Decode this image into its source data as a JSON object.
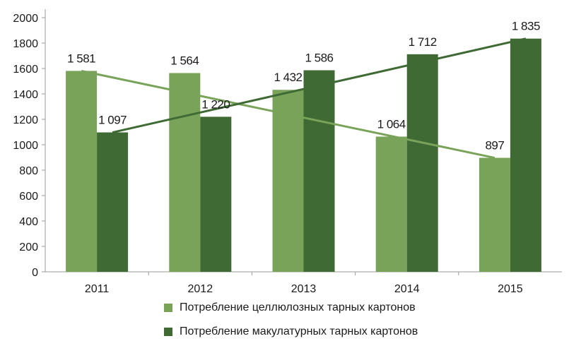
{
  "chart_data": {
    "type": "bar",
    "categories": [
      "2011",
      "2012",
      "2013",
      "2014",
      "2015"
    ],
    "series": [
      {
        "name": "Потребление целлюлозных тарных картонов",
        "values": [
          1581,
          1564,
          1432,
          1064,
          897
        ],
        "labels": [
          "1 581",
          "1 564",
          "1 432",
          "1 064",
          "897"
        ],
        "color": "#7aa35a"
      },
      {
        "name": "Потребление макулатурных тарных картонов",
        "values": [
          1097,
          1220,
          1586,
          1712,
          1835
        ],
        "labels": [
          "1 097",
          "1 220",
          "1 586",
          "1 712",
          "1 835"
        ],
        "color": "#3f6a34"
      }
    ],
    "trendlines": [
      {
        "series": 0,
        "from": 1581,
        "to": 897,
        "color": "#7aa35a"
      },
      {
        "series": 1,
        "from": 1097,
        "to": 1835,
        "color": "#3f6a34"
      }
    ],
    "ylim": [
      0,
      2000
    ],
    "yticks": [
      0,
      200,
      400,
      600,
      800,
      1000,
      1200,
      1400,
      1600,
      1800,
      2000
    ],
    "grid": false,
    "legend_position": "bottom",
    "title": "",
    "xlabel": "",
    "ylabel": ""
  }
}
